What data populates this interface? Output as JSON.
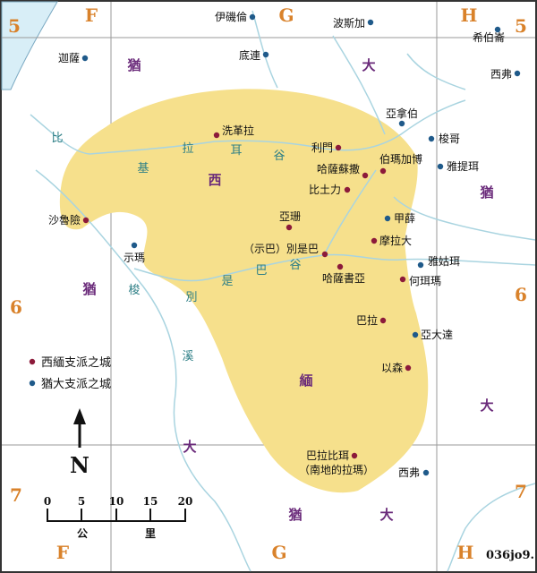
{
  "map": {
    "colors": {
      "territory": "#f6e08c",
      "river": "#a9d4e0",
      "sea": "#d8eef7",
      "grid": "#9a9a9a",
      "simeon_dot": "#8c1a3a",
      "judah_dot": "#1f5a8a",
      "grid_label": "#d9822b",
      "region_label": "#6a2a7a",
      "river_label": "#2e7f86"
    },
    "grid": {
      "columns": [
        "F",
        "G",
        "H"
      ],
      "rows": [
        "5",
        "6",
        "7"
      ]
    },
    "regions": [
      {
        "id": "simeon-xi",
        "text": "西"
      },
      {
        "id": "simeon-mian",
        "text": "緬"
      },
      {
        "id": "judah-1-you",
        "text": "猶"
      },
      {
        "id": "judah-1-da",
        "text": "大"
      },
      {
        "id": "judah-2-you",
        "text": "猶"
      },
      {
        "id": "judah-3-you",
        "text": "猶"
      },
      {
        "id": "judah-4-da",
        "text": "大"
      },
      {
        "id": "judah-5-da",
        "text": "大"
      },
      {
        "id": "judah-6-you",
        "text": "猶"
      },
      {
        "id": "judah-6-da",
        "text": "大"
      }
    ],
    "rivers": [
      {
        "id": "besor-1",
        "text": "比"
      },
      {
        "id": "besor-2",
        "text": "基"
      },
      {
        "id": "besor-3",
        "text": "拉"
      },
      {
        "id": "besor-4",
        "text": "耳"
      },
      {
        "id": "besor-5",
        "text": "谷"
      },
      {
        "id": "beersheba-1",
        "text": "別"
      },
      {
        "id": "beersheba-2",
        "text": "是"
      },
      {
        "id": "beersheba-3",
        "text": "巴"
      },
      {
        "id": "beersheba-4",
        "text": "谷"
      },
      {
        "id": "besor-wadi-1",
        "text": "梭"
      },
      {
        "id": "besor-wadi-2",
        "text": "溪"
      }
    ],
    "cities": [
      {
        "id": "eshtemoa",
        "name": "伊磯倫",
        "tribe": "judah"
      },
      {
        "id": "bozkath",
        "name": "波斯加",
        "tribe": "judah"
      },
      {
        "id": "hebron-n",
        "name": "希伯崙",
        "tribe": "judah"
      },
      {
        "id": "madmannah",
        "name": "迦薩",
        "tribe": "judah"
      },
      {
        "id": "debir",
        "name": "底連",
        "tribe": "judah"
      },
      {
        "id": "sif-n",
        "name": "西弗",
        "tribe": "judah"
      },
      {
        "id": "anab",
        "name": "亞拿伯",
        "tribe": "judah"
      },
      {
        "id": "socoh",
        "name": "梭哥",
        "tribe": "judah"
      },
      {
        "id": "ziklag",
        "name": "洗革拉",
        "tribe": "simeon"
      },
      {
        "id": "rimmon",
        "name": "利門",
        "tribe": "simeon"
      },
      {
        "id": "hazarsusah",
        "name": "哈薩蘇撒",
        "tribe": "simeon"
      },
      {
        "id": "bethmarcaboth",
        "name": "伯瑪加博",
        "tribe": "simeon"
      },
      {
        "id": "jattir",
        "name": "雅提珥",
        "tribe": "judah"
      },
      {
        "id": "bethlebaoth",
        "name": "比土力",
        "tribe": "simeon"
      },
      {
        "id": "sharuhen",
        "name": "沙魯險",
        "tribe": "simeon"
      },
      {
        "id": "ain",
        "name": "亞珊",
        "tribe": "simeon"
      },
      {
        "id": "jeshua",
        "name": "甲薛",
        "tribe": "judah"
      },
      {
        "id": "moladah",
        "name": "摩拉大",
        "tribe": "simeon"
      },
      {
        "id": "shema",
        "name": "示瑪",
        "tribe": "judah"
      },
      {
        "id": "beersheba",
        "name": "（示巴）別是巴",
        "tribe": "simeon"
      },
      {
        "id": "jagur",
        "name": "雅姑珥",
        "tribe": "judah"
      },
      {
        "id": "hazarshual",
        "name": "哈薩書亞",
        "tribe": "simeon"
      },
      {
        "id": "hormah",
        "name": "何珥瑪",
        "tribe": "simeon"
      },
      {
        "id": "balah",
        "name": "巴拉",
        "tribe": "simeon"
      },
      {
        "id": "adadah",
        "name": "亞大達",
        "tribe": "judah"
      },
      {
        "id": "ezem",
        "name": "以森",
        "tribe": "simeon"
      },
      {
        "id": "baalathbeer",
        "name": "巴拉比珥",
        "tribe": "simeon"
      },
      {
        "id": "sif-s",
        "name": "西弗",
        "tribe": "judah"
      }
    ],
    "baalathbeer_note": "（南地的拉瑪）",
    "legend": {
      "simeon": "西緬支派之城",
      "judah": "猶大支派之城"
    },
    "north_arrow": {
      "letter": "N"
    },
    "scale": {
      "ticks": [
        "0",
        "5",
        "10",
        "15",
        "20"
      ],
      "unit_left": "公",
      "unit_right": "里"
    },
    "code": "036jo9."
  }
}
